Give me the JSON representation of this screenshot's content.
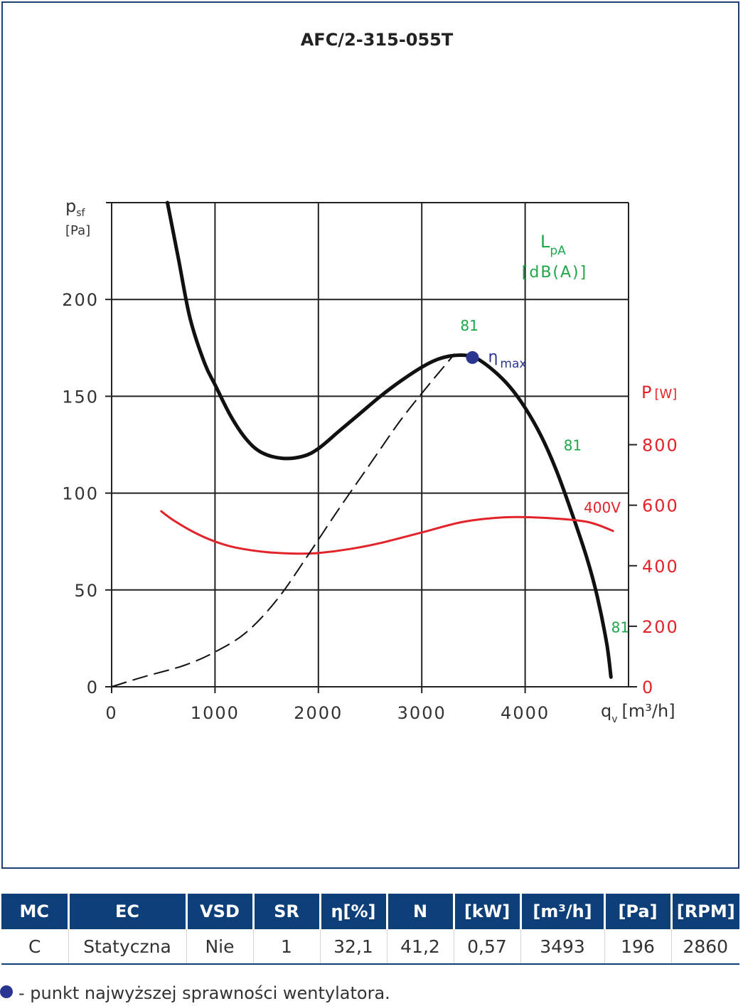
{
  "chart_data": {
    "type": "line",
    "title": "AFC/2-315-055T",
    "xlabel": "q",
    "xlabel_sub": "v",
    "xlabel_unit": "[m³/h]",
    "ylabel": "p",
    "ylabel_sub": "sf",
    "ylabel_unit": "[Pa]",
    "y2label": "P",
    "y2label_unit": "[W]",
    "xlim": [
      0,
      5000
    ],
    "ylim": [
      0,
      250
    ],
    "y2lim": [
      0,
      1600
    ],
    "xticks": [
      {
        "value": 0,
        "label": "0"
      },
      {
        "value": 1000,
        "label": "1000"
      },
      {
        "value": 2000,
        "label": "2000"
      },
      {
        "value": 3000,
        "label": "3000"
      },
      {
        "value": 4000,
        "label": "4000"
      }
    ],
    "yticks": [
      {
        "value": 0,
        "label": "0"
      },
      {
        "value": 50,
        "label": "50"
      },
      {
        "value": 100,
        "label": "100"
      },
      {
        "value": 150,
        "label": "150"
      },
      {
        "value": 200,
        "label": "200"
      }
    ],
    "y2ticks": [
      {
        "value": 0,
        "label": "0"
      },
      {
        "value": 200,
        "label": "200"
      },
      {
        "value": 400,
        "label": "400"
      },
      {
        "value": 600,
        "label": "600"
      },
      {
        "value": 800,
        "label": "800"
      }
    ],
    "grid": true,
    "series": [
      {
        "role": "pressure",
        "color": "#111111",
        "x": [
          540,
          650,
          760,
          900,
          1000,
          1150,
          1300,
          1450,
          1650,
          1850,
          2000,
          2200,
          2400,
          2600,
          2800,
          3000,
          3150,
          3300,
          3450,
          3550,
          3700,
          3850,
          4000,
          4150,
          4300,
          4450,
          4600,
          4700,
          4790,
          4830
        ],
        "y": [
          250,
          220,
          190,
          167,
          156,
          140,
          128,
          121,
          118,
          119,
          123,
          132,
          141,
          150,
          158,
          165,
          169,
          171,
          171,
          169,
          163,
          155,
          144,
          130,
          112,
          90,
          66,
          46,
          22,
          5
        ]
      },
      {
        "role": "power",
        "name": "400V",
        "color": "#e2242a",
        "x": [
          480,
          600,
          800,
          1000,
          1200,
          1500,
          1800,
          2000,
          2300,
          2600,
          3000,
          3400,
          3800,
          4200,
          4600,
          4850
        ],
        "y": [
          580,
          550,
          510,
          480,
          460,
          445,
          440,
          442,
          455,
          475,
          510,
          545,
          560,
          558,
          545,
          515
        ]
      },
      {
        "role": "system",
        "color": "#111111",
        "dashed": true,
        "x": [
          0,
          300,
          700,
          1000,
          1300,
          1600,
          1900,
          2200,
          2500,
          2800,
          3100,
          3320
        ],
        "y": [
          0,
          5,
          11,
          18,
          28,
          45,
          68,
          92,
          115,
          138,
          158,
          172
        ]
      }
    ],
    "eta_max_point": {
      "x": 3490,
      "y": 170,
      "label": "η",
      "label_sub": "max"
    },
    "sound_labels": [
      {
        "x": 3460,
        "y": 184,
        "text": "81"
      },
      {
        "x": 4460,
        "y": 122,
        "text": "81"
      },
      {
        "x": 4920,
        "y": 28,
        "text": "81"
      }
    ],
    "lpa_title": "L",
    "lpa_sub": "pA",
    "lpa_unit": "[dB(A)]",
    "power_label": "400V"
  },
  "table": {
    "headers": [
      "MC",
      "EC",
      "VSD",
      "SR",
      "η[%]",
      "N",
      "[kW]",
      "[m³/h]",
      "[Pa]",
      "[RPM]"
    ],
    "rows": [
      [
        "C",
        "Statyczna",
        "Nie",
        "1",
        "32,1",
        "41,2",
        "0,57",
        "3493",
        "196",
        "2860"
      ]
    ]
  },
  "footnote": "- punkt najwyższej sprawności wentylatora.",
  "colors": {
    "frame": "#1d3f73",
    "header_bg": "#0f3f78",
    "pressure": "#111111",
    "power": "#e2242a",
    "sound": "#1fa64a",
    "eta": "#2a3590"
  }
}
